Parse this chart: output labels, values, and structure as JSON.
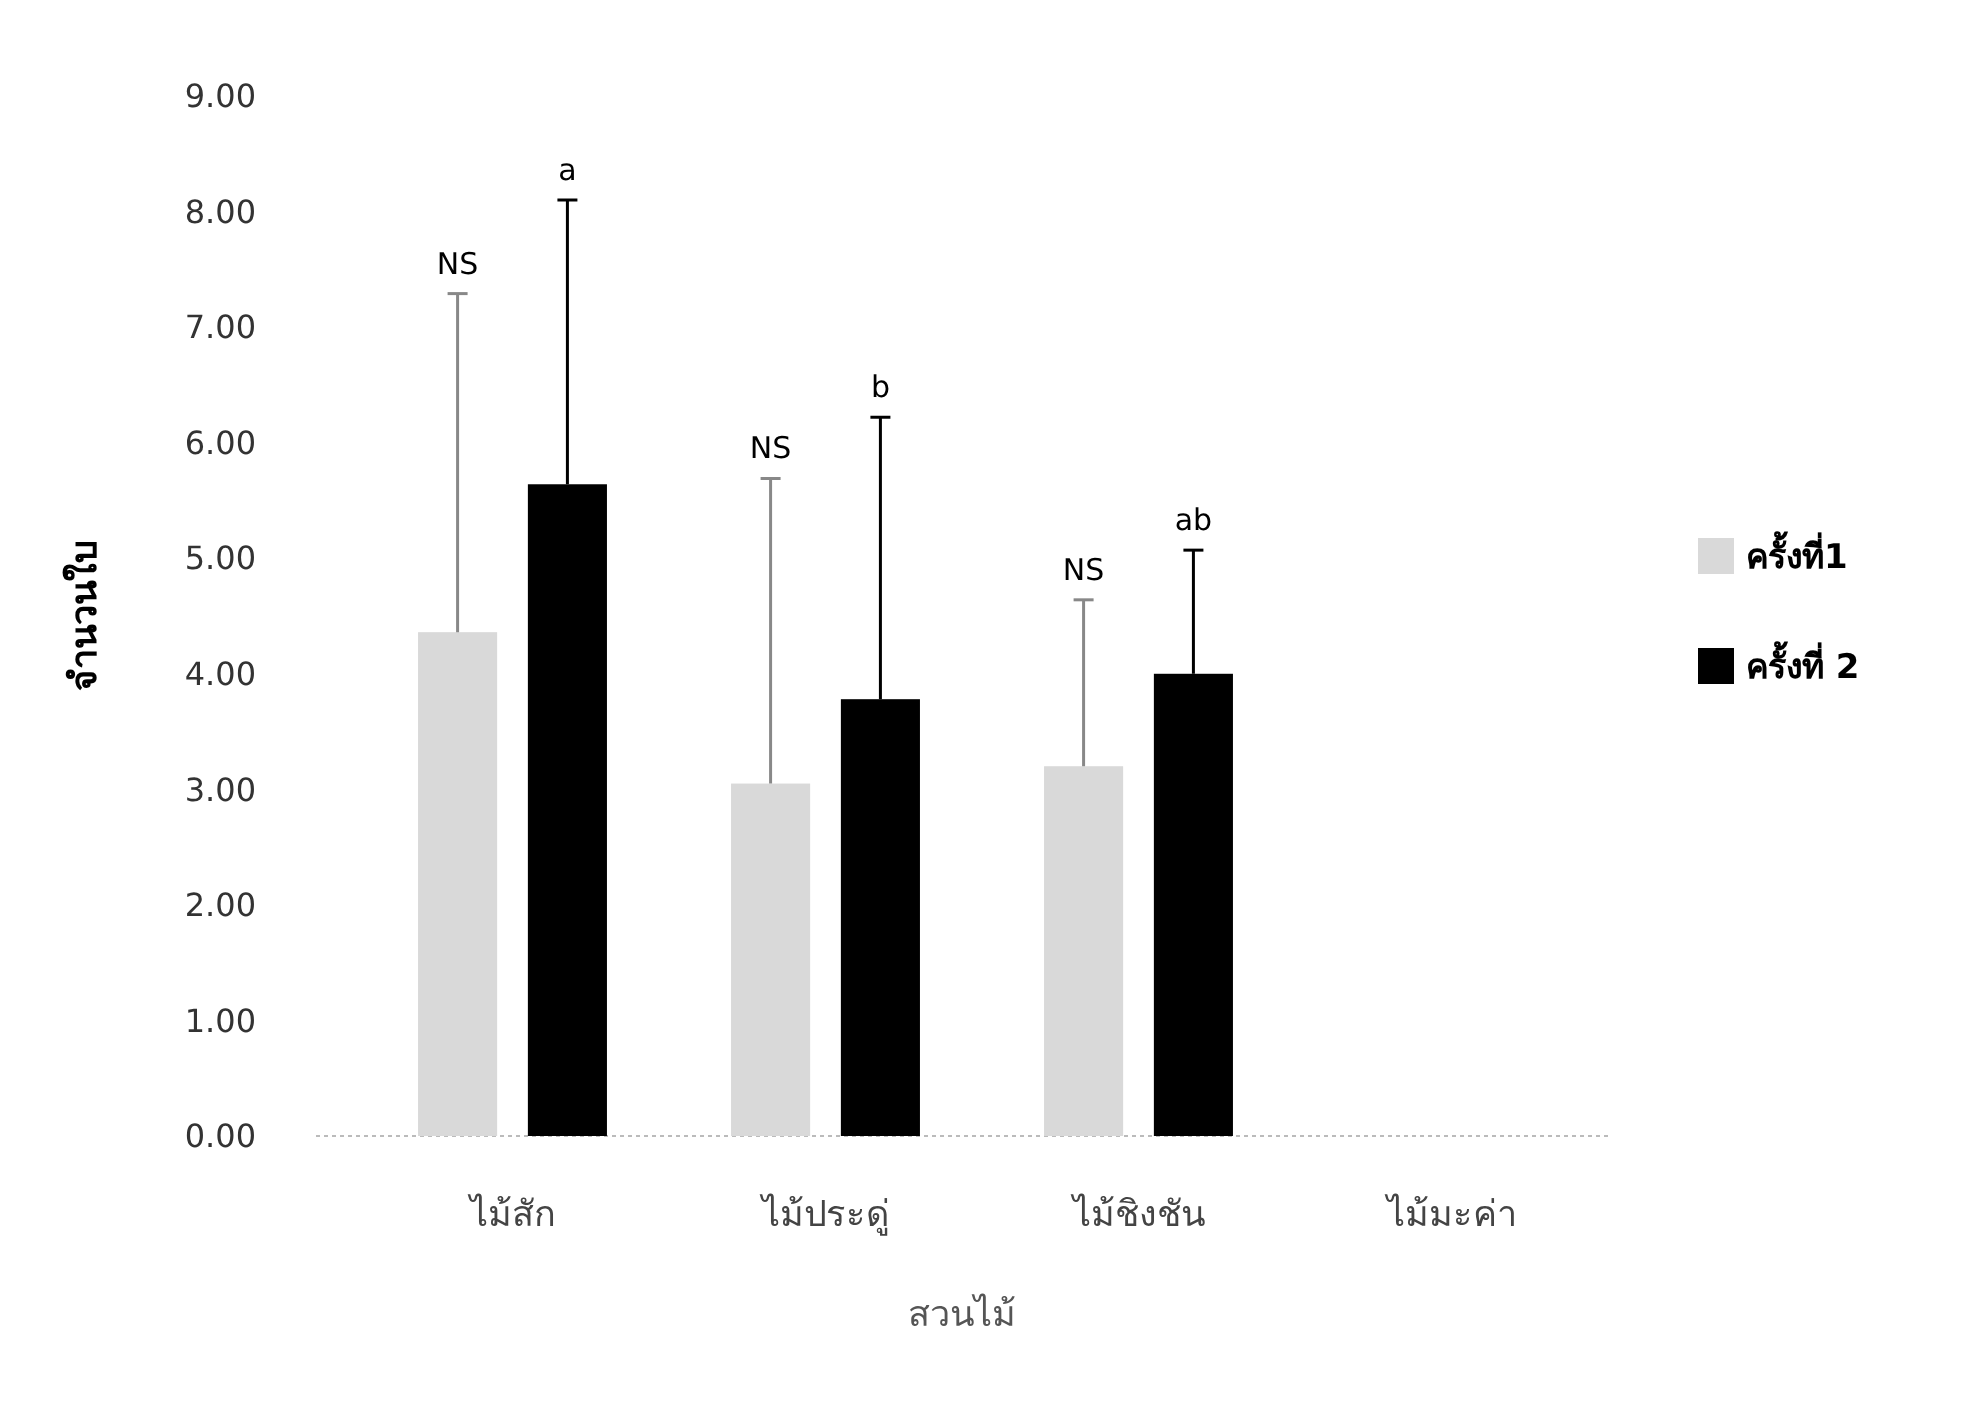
{
  "chart_data": {
    "type": "bar",
    "xlabel": "สวนไม้",
    "ylabel": "จำนวนใบ",
    "categories": [
      "ไม้สัก",
      "ไม้ประดู่",
      "ไม้ชิงชัน",
      "ไม้มะค่า"
    ],
    "series": [
      {
        "name": "ครั้งที่1",
        "color": "#d9d9d9",
        "values": [
          4.36,
          3.05,
          3.2,
          null
        ],
        "errors": [
          [
            4.36,
            7.29
          ],
          [
            3.05,
            5.69
          ],
          [
            3.2,
            4.64
          ],
          null
        ]
      },
      {
        "name": "ครั้งที่ 2",
        "color": "#000000",
        "values": [
          5.64,
          3.78,
          4.0,
          null
        ],
        "errors": [
          [
            5.64,
            8.1
          ],
          [
            3.78,
            6.22
          ],
          [
            4.0,
            5.07
          ],
          null
        ]
      }
    ],
    "ylim": [
      0,
      9
    ],
    "yticks": [
      {
        "value": 0,
        "label": "0.00"
      },
      {
        "value": 1,
        "label": "1.00"
      },
      {
        "value": 2,
        "label": "2.00"
      },
      {
        "value": 3,
        "label": "3.00"
      },
      {
        "value": 4,
        "label": "4.00"
      },
      {
        "value": 5,
        "label": "5.00"
      },
      {
        "value": 6,
        "label": "6.00"
      },
      {
        "value": 7,
        "label": "7.00"
      },
      {
        "value": 8,
        "label": "8.00"
      },
      {
        "value": 9,
        "label": "9.00"
      }
    ],
    "annotations": [
      "NS",
      "a",
      "NS",
      "b",
      "NS",
      "ab"
    ],
    "legend": "right"
  }
}
